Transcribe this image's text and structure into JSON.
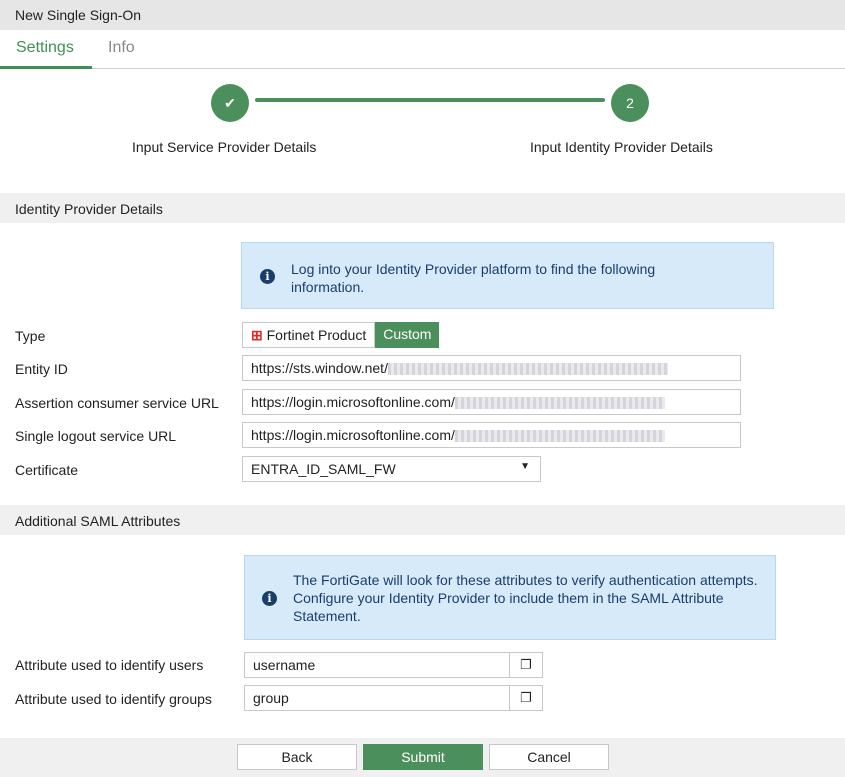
{
  "window": {
    "title": "New Single Sign-On"
  },
  "tabs": [
    {
      "label": "Settings",
      "active": true
    },
    {
      "label": "Info",
      "active": false
    }
  ],
  "wizard": {
    "steps": [
      {
        "label": "Input Service Provider Details",
        "marker": "check-icon",
        "done": true
      },
      {
        "label": "Input Identity Provider Details",
        "marker": "2",
        "done": false
      }
    ]
  },
  "idp": {
    "section_title": "Identity Provider Details",
    "info": "Log into your Identity Provider platform to find the following information.",
    "type_label": "Type",
    "type_options": [
      "Fortinet Product",
      "Custom"
    ],
    "type_selected": "Custom",
    "entity_id_label": "Entity ID",
    "entity_id": "https://sts.window.net/",
    "acs_label": "Assertion consumer service URL",
    "acs": "https://login.microsoftonline.com/",
    "slo_label": "Single logout service URL",
    "slo": "https://login.microsoftonline.com/",
    "cert_label": "Certificate",
    "cert": "ENTRA_ID_SAML_FW"
  },
  "saml": {
    "section_title": "Additional SAML Attributes",
    "info": "The FortiGate will look for these attributes to verify authentication attempts. Configure your Identity Provider to include them in the SAML Attribute Statement.",
    "users_label": "Attribute used to identify users",
    "users": "username",
    "groups_label": "Attribute used to identify groups",
    "groups": "group"
  },
  "buttons": {
    "back": "Back",
    "submit": "Submit",
    "cancel": "Cancel"
  },
  "colors": {
    "accent": "#4b8f5c",
    "info_bg": "#d7eafa",
    "fortinet_red": "#d32f2f"
  }
}
